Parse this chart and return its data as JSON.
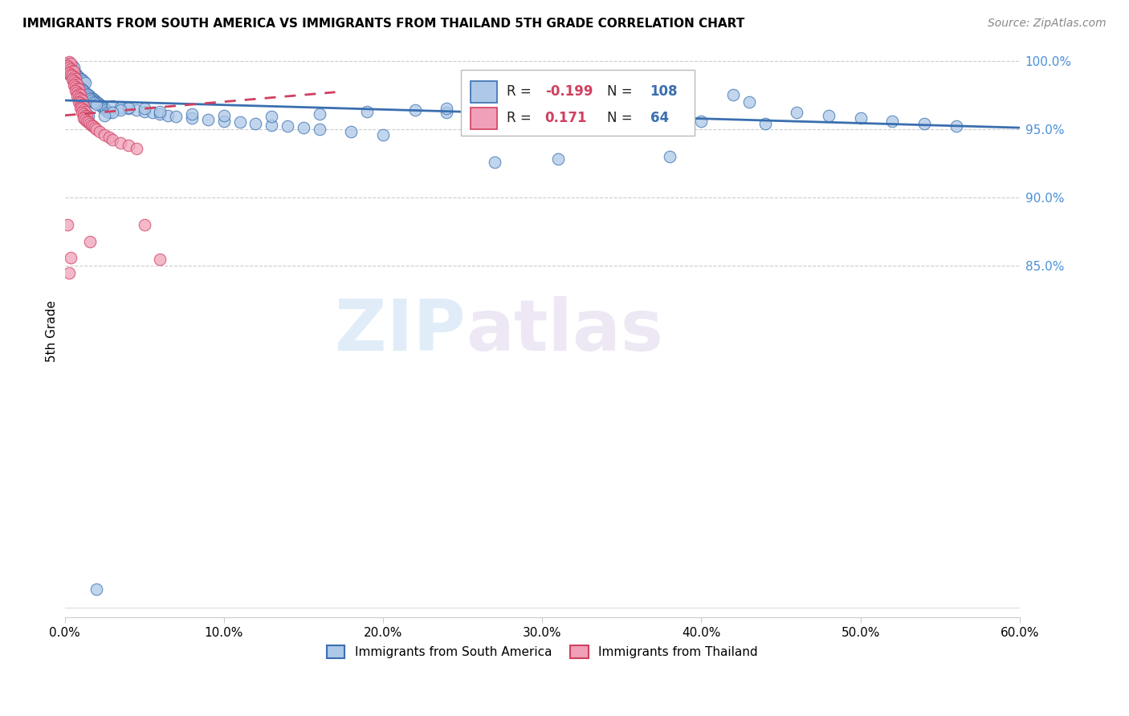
{
  "title": "IMMIGRANTS FROM SOUTH AMERICA VS IMMIGRANTS FROM THAILAND 5TH GRADE CORRELATION CHART",
  "source": "Source: ZipAtlas.com",
  "ylabel": "5th Grade",
  "x_min": 0.0,
  "x_max": 0.6,
  "y_min": 0.593,
  "y_max": 1.012,
  "x_tick_labels": [
    "0.0%",
    "10.0%",
    "20.0%",
    "30.0%",
    "40.0%",
    "50.0%",
    "60.0%"
  ],
  "x_tick_vals": [
    0.0,
    0.1,
    0.2,
    0.3,
    0.4,
    0.5,
    0.6
  ],
  "y_tick_labels": [
    "100.0%",
    "95.0%",
    "90.0%",
    "85.0%"
  ],
  "y_tick_vals": [
    1.0,
    0.95,
    0.9,
    0.85
  ],
  "blue_color": "#adc8e8",
  "pink_color": "#f0a0b8",
  "blue_line_color": "#3a6faf",
  "pink_line_color": "#d04060",
  "R_blue": -0.199,
  "N_blue": 108,
  "R_pink": 0.171,
  "N_pink": 64,
  "legend_label_blue": "Immigrants from South America",
  "legend_label_pink": "Immigrants from Thailand",
  "watermark_zip": "ZIP",
  "watermark_atlas": "atlas",
  "blue_x": [
    0.002,
    0.003,
    0.001,
    0.004,
    0.002,
    0.001,
    0.003,
    0.002,
    0.001,
    0.004,
    0.005,
    0.003,
    0.006,
    0.004,
    0.002,
    0.005,
    0.007,
    0.006,
    0.008,
    0.009,
    0.01,
    0.011,
    0.012,
    0.013,
    0.007,
    0.008,
    0.009,
    0.01,
    0.011,
    0.012,
    0.013,
    0.014,
    0.015,
    0.016,
    0.017,
    0.018,
    0.019,
    0.02,
    0.021,
    0.022,
    0.023,
    0.024,
    0.025,
    0.026,
    0.027,
    0.028,
    0.014,
    0.015,
    0.016,
    0.017,
    0.018,
    0.019,
    0.02,
    0.03,
    0.035,
    0.04,
    0.045,
    0.05,
    0.055,
    0.06,
    0.065,
    0.07,
    0.08,
    0.09,
    0.1,
    0.11,
    0.12,
    0.13,
    0.14,
    0.15,
    0.16,
    0.18,
    0.2,
    0.22,
    0.24,
    0.26,
    0.28,
    0.3,
    0.32,
    0.34,
    0.36,
    0.38,
    0.4,
    0.42,
    0.44,
    0.46,
    0.48,
    0.5,
    0.52,
    0.54,
    0.56,
    0.43,
    0.38,
    0.31,
    0.27,
    0.24,
    0.19,
    0.16,
    0.13,
    0.1,
    0.08,
    0.06,
    0.05,
    0.04,
    0.035,
    0.03,
    0.025,
    0.02
  ],
  "blue_y": [
    0.998,
    0.997,
    0.996,
    0.997,
    0.995,
    0.994,
    0.993,
    0.992,
    0.991,
    0.993,
    0.996,
    0.998,
    0.995,
    0.994,
    0.993,
    0.992,
    0.991,
    0.99,
    0.989,
    0.988,
    0.987,
    0.986,
    0.985,
    0.984,
    0.983,
    0.982,
    0.981,
    0.98,
    0.979,
    0.978,
    0.977,
    0.976,
    0.975,
    0.974,
    0.973,
    0.972,
    0.971,
    0.97,
    0.969,
    0.968,
    0.967,
    0.966,
    0.965,
    0.964,
    0.963,
    0.962,
    0.961,
    0.96,
    0.972,
    0.971,
    0.97,
    0.969,
    0.968,
    0.967,
    0.966,
    0.965,
    0.964,
    0.963,
    0.962,
    0.961,
    0.96,
    0.959,
    0.958,
    0.957,
    0.956,
    0.955,
    0.954,
    0.953,
    0.952,
    0.951,
    0.95,
    0.948,
    0.946,
    0.964,
    0.962,
    0.96,
    0.958,
    0.956,
    0.964,
    0.962,
    0.96,
    0.958,
    0.956,
    0.975,
    0.954,
    0.962,
    0.96,
    0.958,
    0.956,
    0.954,
    0.952,
    0.97,
    0.93,
    0.928,
    0.926,
    0.965,
    0.963,
    0.961,
    0.959,
    0.96,
    0.961,
    0.963,
    0.965,
    0.966,
    0.964,
    0.962,
    0.96,
    0.614
  ],
  "pink_x": [
    0.001,
    0.002,
    0.003,
    0.004,
    0.002,
    0.003,
    0.004,
    0.005,
    0.006,
    0.003,
    0.004,
    0.005,
    0.006,
    0.007,
    0.005,
    0.006,
    0.007,
    0.008,
    0.006,
    0.007,
    0.008,
    0.009,
    0.007,
    0.008,
    0.009,
    0.01,
    0.008,
    0.009,
    0.01,
    0.011,
    0.009,
    0.01,
    0.011,
    0.012,
    0.01,
    0.011,
    0.012,
    0.013,
    0.011,
    0.012,
    0.013,
    0.014,
    0.012,
    0.013,
    0.014,
    0.015,
    0.016,
    0.017,
    0.018,
    0.019,
    0.02,
    0.022,
    0.025,
    0.028,
    0.03,
    0.035,
    0.04,
    0.045,
    0.05,
    0.06,
    0.002,
    0.003,
    0.004,
    0.016
  ],
  "pink_y": [
    0.998,
    0.997,
    0.999,
    0.998,
    0.996,
    0.995,
    0.994,
    0.993,
    0.992,
    0.991,
    0.99,
    0.989,
    0.988,
    0.987,
    0.986,
    0.985,
    0.984,
    0.983,
    0.982,
    0.981,
    0.98,
    0.979,
    0.978,
    0.977,
    0.976,
    0.975,
    0.974,
    0.973,
    0.972,
    0.971,
    0.97,
    0.969,
    0.968,
    0.967,
    0.966,
    0.965,
    0.964,
    0.963,
    0.962,
    0.961,
    0.96,
    0.959,
    0.958,
    0.957,
    0.956,
    0.955,
    0.954,
    0.953,
    0.952,
    0.951,
    0.95,
    0.948,
    0.946,
    0.944,
    0.942,
    0.94,
    0.938,
    0.936,
    0.88,
    0.855,
    0.88,
    0.845,
    0.856,
    0.868
  ]
}
